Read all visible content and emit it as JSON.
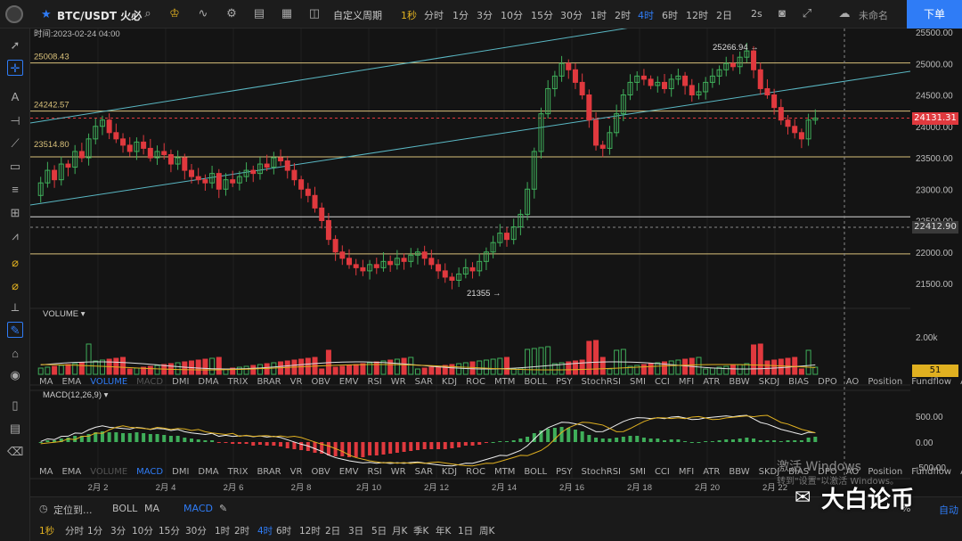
{
  "toolbar": {
    "symbol": "BTC/USDT 火必",
    "custom_period": "自定义周期",
    "periods": [
      "1秒",
      "分时",
      "1分",
      "3分",
      "10分",
      "15分",
      "30分",
      "1时",
      "2时",
      "4时",
      "6时",
      "12时",
      "2日"
    ],
    "refresh": "2s",
    "unnamed": "未命名",
    "order_button": "下单"
  },
  "chart": {
    "time_label": "时间:2023-02-24 04:00",
    "hline_labels": [
      "25008.43",
      "24242.57",
      "23514.80"
    ],
    "high_label": "25266.94",
    "low_label": "21355",
    "price_axis": [
      "25500.00",
      "25000.00",
      "24500.00",
      "24000.00",
      "23500.00",
      "23000.00",
      "22500.00",
      "22000.00",
      "21500.00"
    ],
    "current_price": "24131.31",
    "crosshair_price": "22412.90",
    "volume_axis": "2.00k",
    "volume_value": "51",
    "macd_axis": [
      "500.00",
      "0.00",
      "-500.00"
    ],
    "date_labels": [
      "2月 2",
      "2月 4",
      "2月 6",
      "2月 8",
      "2月 10",
      "2月 12",
      "2月 14",
      "2月 16",
      "2月 18",
      "2月 20",
      "2月 22"
    ],
    "volume_title": "VOLUME",
    "macd_title": "MACD(12,26,9)",
    "colors": {
      "up": "#3fae5a",
      "down": "#e0393e",
      "hline": "#d8c07a",
      "trend": "#5ab8c4"
    }
  },
  "indicators": [
    "MA",
    "EMA",
    "VOLUME",
    "MACD",
    "DMI",
    "DMA",
    "TRIX",
    "BRAR",
    "VR",
    "OBV",
    "EMV",
    "RSI",
    "WR",
    "SAR",
    "KDJ",
    "ROC",
    "MTM",
    "BOLL",
    "PSY",
    "StochRSI",
    "SMI",
    "CCI",
    "MFI",
    "ATR",
    "BBW",
    "SKDJ",
    "BIAS",
    "DPO",
    "AO",
    "Position",
    "Fundflow",
    "AI-NetVOL"
  ],
  "bottom": {
    "locate": "定位到...",
    "main_indicators": [
      "BOLL",
      "MA"
    ],
    "sub_indicator": "MACD",
    "periods": [
      "1秒",
      "分时",
      "1分",
      "3分",
      "10分",
      "15分",
      "30分",
      "1时",
      "2时",
      "4时",
      "6时",
      "12时",
      "2日",
      "3日",
      "5日",
      "月K",
      "季K",
      "年K",
      "1日",
      "周K"
    ],
    "percent": "%",
    "auto": "自动"
  },
  "watermark": {
    "line1": "激活 Windows",
    "line2": "转到\"设置\"以激活 Windows。"
  },
  "brand": "大白论币"
}
